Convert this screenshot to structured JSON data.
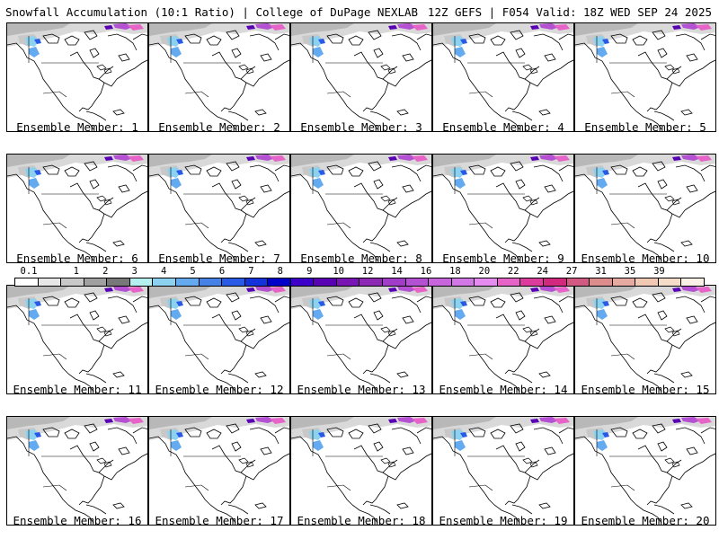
{
  "header": {
    "title_left": "Snowfall Accumulation (10:1 Ratio) | College of DuPage NEXLAB",
    "title_right": "12Z GEFS | F054 Valid: 18Z WED SEP 24 2025"
  },
  "panels": [
    {
      "label": "Ensemble Member: 1"
    },
    {
      "label": "Ensemble Member: 2"
    },
    {
      "label": "Ensemble Member: 3"
    },
    {
      "label": "Ensemble Member: 4"
    },
    {
      "label": "Ensemble Member: 5"
    },
    {
      "label": "Ensemble Member: 6"
    },
    {
      "label": "Ensemble Member: 7"
    },
    {
      "label": "Ensemble Member: 8"
    },
    {
      "label": "Ensemble Member: 9"
    },
    {
      "label": "Ensemble Member: 10"
    },
    {
      "label": "Ensemble Member: 11"
    },
    {
      "label": "Ensemble Member: 12"
    },
    {
      "label": "Ensemble Member: 13"
    },
    {
      "label": "Ensemble Member: 14"
    },
    {
      "label": "Ensemble Member: 15"
    },
    {
      "label": "Ensemble Member: 16"
    },
    {
      "label": "Ensemble Member: 17"
    },
    {
      "label": "Ensemble Member: 18"
    },
    {
      "label": "Ensemble Member: 19"
    },
    {
      "label": "Ensemble Member: 20"
    }
  ],
  "legend": {
    "labels": [
      "0.1",
      "1",
      "2",
      "3",
      "4",
      "5",
      "6",
      "7",
      "8",
      "9",
      "10",
      "12",
      "14",
      "16",
      "18",
      "20",
      "22",
      "24",
      "27",
      "31",
      "35",
      "39"
    ],
    "colors": [
      "#ffffff",
      "#e6e6e6",
      "#c8c8c8",
      "#a0a0a0",
      "#787878",
      "#b4f0f0",
      "#8cd2f0",
      "#64aaf0",
      "#4682e6",
      "#285ae6",
      "#1432dc",
      "#0000c8",
      "#3c00c8",
      "#5a00b4",
      "#7814b4",
      "#8c28b4",
      "#a03cc8",
      "#b450d2",
      "#c864dc",
      "#d278e6",
      "#e68cf0",
      "#e664c8",
      "#dc3c9b",
      "#d2287d",
      "#d25a82",
      "#dc8c8c",
      "#e6aaa0",
      "#f0c8b4",
      "#f5dcc8",
      "#faf0e6"
    ]
  }
}
